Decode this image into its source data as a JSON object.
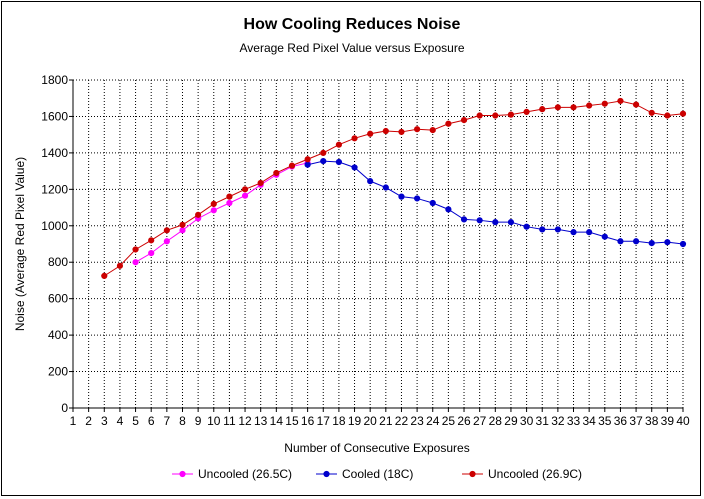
{
  "chart_data": {
    "type": "line",
    "title": "How Cooling Reduces Noise",
    "subtitle": "Average Red Pixel Value versus Exposure",
    "xlabel": "Number of Consecutive Exposures",
    "ylabel": "Noise (Average Red Pixel Value)",
    "xlim": [
      1,
      40
    ],
    "ylim": [
      0,
      1800
    ],
    "x_ticks": [
      1,
      2,
      3,
      4,
      5,
      6,
      7,
      8,
      9,
      10,
      11,
      12,
      13,
      14,
      15,
      16,
      17,
      18,
      19,
      20,
      21,
      22,
      23,
      24,
      25,
      26,
      27,
      28,
      29,
      30,
      31,
      32,
      33,
      34,
      35,
      36,
      37,
      38,
      39,
      40
    ],
    "y_ticks": [
      0,
      200,
      400,
      600,
      800,
      1000,
      1200,
      1400,
      1600,
      1800
    ],
    "grid": true,
    "legend_position": "bottom",
    "series": [
      {
        "name": "Uncooled (26.5C)",
        "color": "#ff00ff",
        "x": [
          5,
          6,
          7,
          8,
          9,
          10,
          11,
          12,
          13,
          14,
          15,
          16
        ],
        "values": [
          800,
          850,
          915,
          975,
          1040,
          1085,
          1125,
          1165,
          1225,
          1280,
          1325,
          1345
        ]
      },
      {
        "name": "Cooled (18C)",
        "color": "#0000cc",
        "x": [
          16,
          17,
          18,
          19,
          20,
          21,
          22,
          23,
          24,
          25,
          26,
          27,
          28,
          29,
          30,
          31,
          32,
          33,
          34,
          35,
          36,
          37,
          38,
          39,
          40
        ],
        "values": [
          1335,
          1355,
          1350,
          1320,
          1245,
          1210,
          1160,
          1150,
          1125,
          1090,
          1035,
          1030,
          1020,
          1020,
          995,
          980,
          980,
          965,
          965,
          940,
          915,
          915,
          905,
          910,
          900
        ]
      },
      {
        "name": "Uncooled (26.9C)",
        "color": "#cc0000",
        "x": [
          3,
          4,
          5,
          6,
          7,
          8,
          9,
          10,
          11,
          12,
          13,
          14,
          15,
          16,
          17,
          18,
          19,
          20,
          21,
          22,
          23,
          24,
          25,
          26,
          27,
          28,
          29,
          30,
          31,
          32,
          33,
          34,
          35,
          36,
          37,
          38,
          39,
          40
        ],
        "values": [
          725,
          780,
          870,
          920,
          975,
          1005,
          1060,
          1120,
          1160,
          1200,
          1235,
          1290,
          1330,
          1365,
          1400,
          1445,
          1480,
          1505,
          1520,
          1515,
          1530,
          1525,
          1560,
          1580,
          1605,
          1605,
          1610,
          1625,
          1640,
          1650,
          1650,
          1660,
          1670,
          1685,
          1665,
          1620,
          1605,
          1615
        ]
      }
    ]
  }
}
